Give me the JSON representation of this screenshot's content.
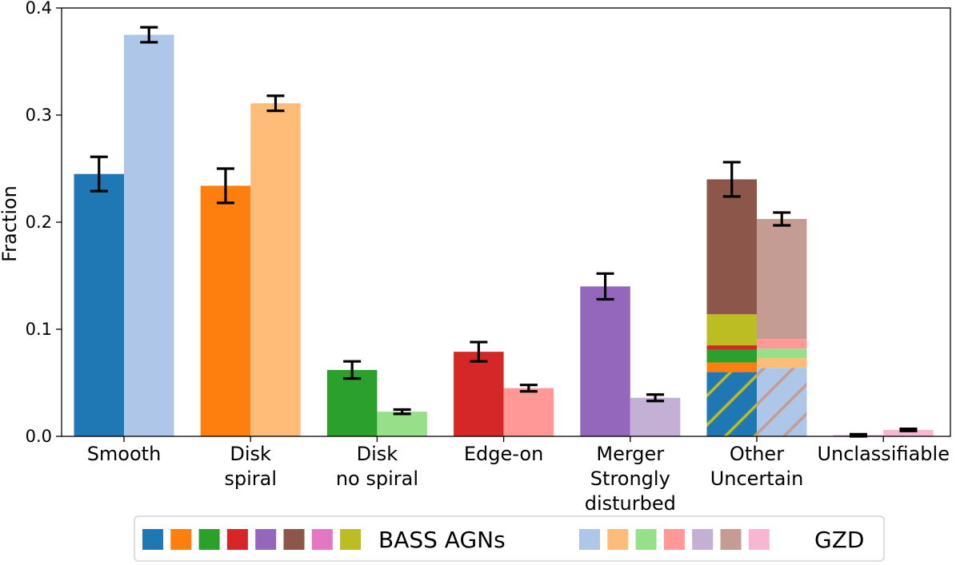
{
  "chart_data": {
    "type": "bar",
    "title": "",
    "xlabel": "",
    "ylabel": "Fraction",
    "ylim": [
      0,
      0.4
    ],
    "yticks": [
      "0.0",
      "0.1",
      "0.2",
      "0.3",
      "0.4"
    ],
    "categories": [
      [
        "Smooth"
      ],
      [
        "Disk",
        "spiral"
      ],
      [
        "Disk",
        "no spiral"
      ],
      [
        "Edge-on"
      ],
      [
        "Merger",
        "Strongly",
        "disturbed"
      ],
      [
        "Other",
        "Uncertain"
      ],
      [
        "Unclassifiable"
      ]
    ],
    "series": [
      {
        "name": "BASS AGNs",
        "values": [
          0.245,
          0.234,
          0.062,
          0.079,
          0.14,
          0.24,
          0.001
        ],
        "errors": [
          0.016,
          0.016,
          0.008,
          0.009,
          0.012,
          0.016,
          0.001
        ],
        "colors": [
          "#1f77b4",
          "#ff7f0e",
          "#2ca02c",
          "#d62728",
          "#9467bd",
          "#8c564b",
          "#e377c2"
        ]
      },
      {
        "name": "GZD",
        "values": [
          0.375,
          0.311,
          0.023,
          0.045,
          0.036,
          0.203,
          0.006
        ],
        "errors": [
          0.007,
          0.007,
          0.002,
          0.003,
          0.003,
          0.006,
          0.001
        ],
        "colors": [
          "#aec7e8",
          "#ffbb78",
          "#98df8a",
          "#ff9896",
          "#c5b0d5",
          "#c49c94",
          "#f7b6d2"
        ]
      }
    ],
    "stacked_segments": {
      "category": "Other\nUncertain",
      "BASS AGNs": [
        {
          "color": "#1f77b4",
          "from": 0.0,
          "to": 0.06,
          "hatch": "#bcbd22"
        },
        {
          "color": "#ff7f0e",
          "from": 0.06,
          "to": 0.069
        },
        {
          "color": "#2ca02c",
          "from": 0.069,
          "to": 0.081
        },
        {
          "color": "#d62728",
          "from": 0.081,
          "to": 0.085
        },
        {
          "color": "#bcbd22",
          "from": 0.085,
          "to": 0.114
        },
        {
          "color": "#8c564b",
          "from": 0.114,
          "to": 0.24
        }
      ],
      "GZD": [
        {
          "color": "#aec7e8",
          "from": 0.0,
          "to": 0.064,
          "hatch": "#c49c94"
        },
        {
          "color": "#ffbb78",
          "from": 0.064,
          "to": 0.073
        },
        {
          "color": "#98df8a",
          "from": 0.073,
          "to": 0.082
        },
        {
          "color": "#ff9896",
          "from": 0.082,
          "to": 0.091
        },
        {
          "color": "#c49c94",
          "from": 0.091,
          "to": 0.203
        }
      ]
    },
    "legend": {
      "placement": "bottom-center",
      "entries": [
        {
          "label": "BASS AGNs",
          "swatches": [
            "#1f77b4",
            "#ff7f0e",
            "#2ca02c",
            "#d62728",
            "#9467bd",
            "#8c564b",
            "#e377c2",
            "#bcbd22"
          ]
        },
        {
          "label": "GZD",
          "swatches": [
            "#aec7e8",
            "#ffbb78",
            "#98df8a",
            "#ff9896",
            "#c5b0d5",
            "#c49c94",
            "#f7b6d2"
          ]
        }
      ]
    }
  }
}
